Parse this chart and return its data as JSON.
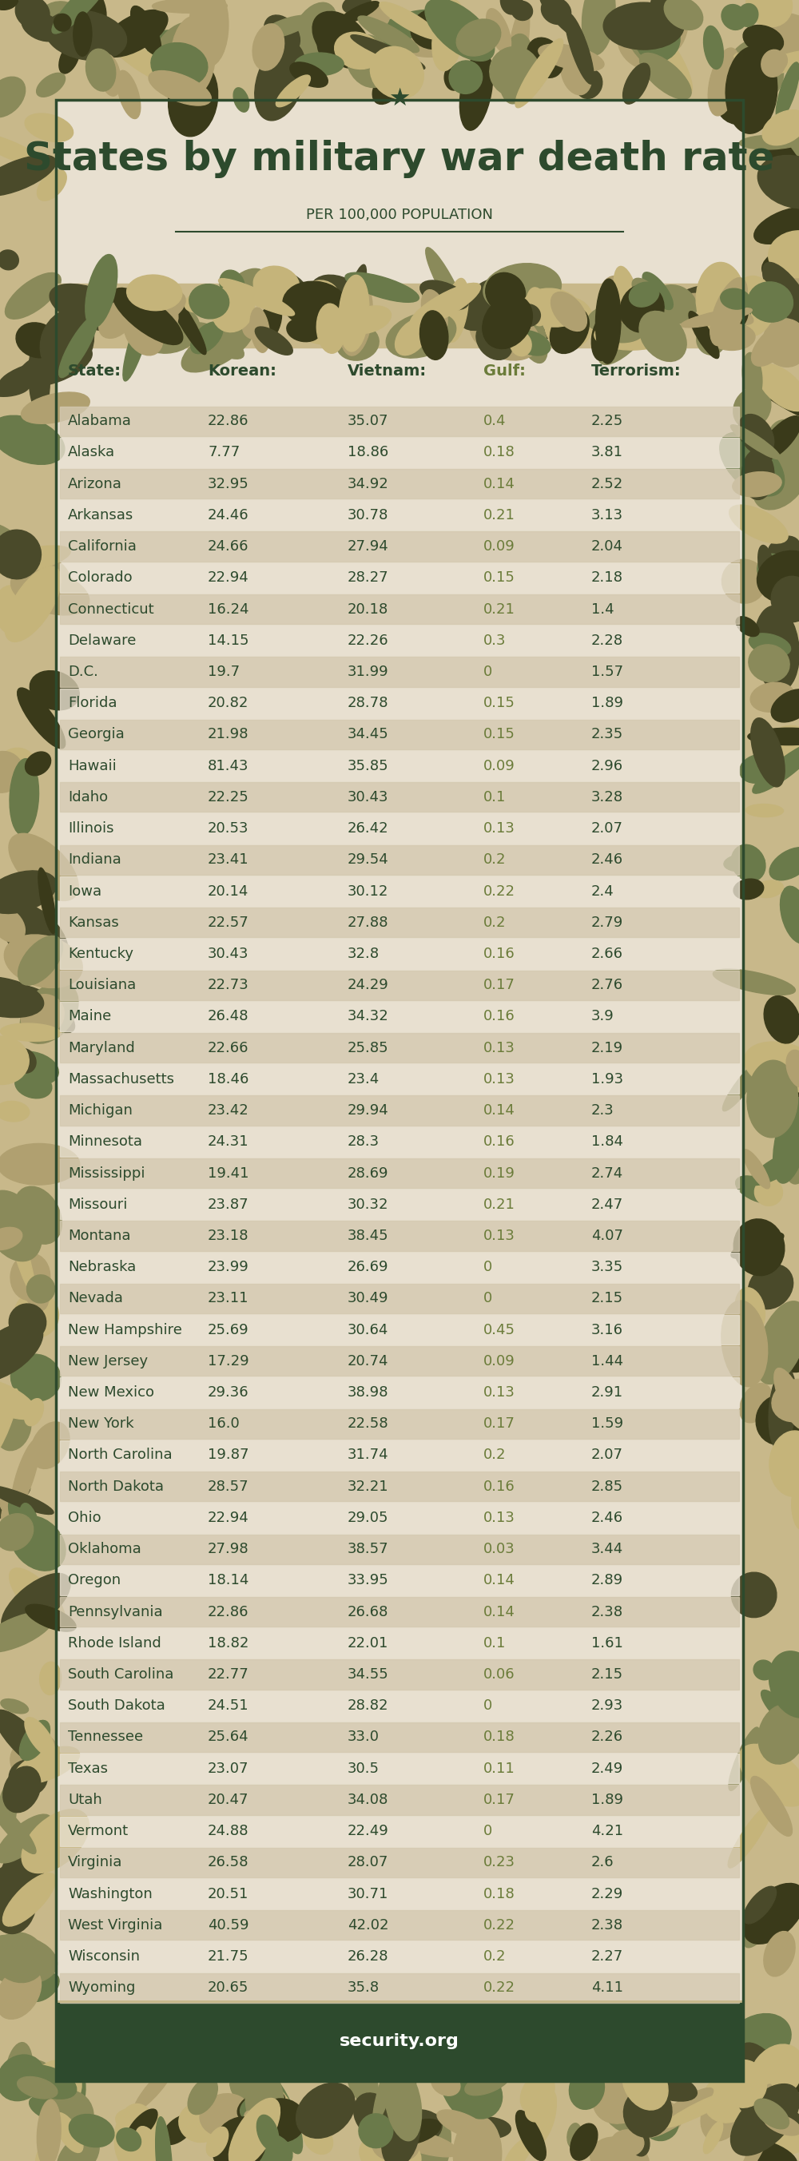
{
  "title": "States by military war death rate",
  "subtitle": "PER 100,000 POPULATION",
  "bg_color": "#e8e0d0",
  "camo_bg": "#d4c9b0",
  "dark_green": "#2d4a2d",
  "footer_bg": "#2d4a2d",
  "footer_text": "security.org",
  "columns": [
    "State:",
    "Korean:",
    "Vietnam:",
    "Gulf:",
    "Terrorism:"
  ],
  "col_colors": [
    "#2d4a2d",
    "#2d4a2d",
    "#2d4a2d",
    "#6b7c3a",
    "#2d4a2d"
  ],
  "row_bg_even": "#d4c9b0",
  "row_bg_odd": "#e8e0d0",
  "states": [
    "Alabama",
    "Alaska",
    "Arizona",
    "Arkansas",
    "California",
    "Colorado",
    "Connecticut",
    "Delaware",
    "D.C.",
    "Florida",
    "Georgia",
    "Hawaii",
    "Idaho",
    "Illinois",
    "Indiana",
    "Iowa",
    "Kansas",
    "Kentucky",
    "Louisiana",
    "Maine",
    "Maryland",
    "Massachusetts",
    "Michigan",
    "Minnesota",
    "Mississippi",
    "Missouri",
    "Montana",
    "Nebraska",
    "Nevada",
    "New Hampshire",
    "New Jersey",
    "New Mexico",
    "New York",
    "North Carolina",
    "North Dakota",
    "Ohio",
    "Oklahoma",
    "Oregon",
    "Pennsylvania",
    "Rhode Island",
    "South Carolina",
    "South Dakota",
    "Tennessee",
    "Texas",
    "Utah",
    "Vermont",
    "Virginia",
    "Washington",
    "West Virginia",
    "Wisconsin",
    "Wyoming"
  ],
  "korean": [
    22.86,
    7.77,
    32.95,
    24.46,
    24.66,
    22.94,
    16.24,
    14.15,
    19.7,
    20.82,
    21.98,
    81.43,
    22.25,
    20.53,
    23.41,
    20.14,
    22.57,
    30.43,
    22.73,
    26.48,
    22.66,
    18.46,
    23.42,
    24.31,
    19.41,
    23.87,
    23.18,
    23.99,
    23.11,
    25.69,
    17.29,
    29.36,
    16.0,
    19.87,
    28.57,
    22.94,
    27.98,
    18.14,
    22.86,
    18.82,
    22.77,
    24.51,
    25.64,
    23.07,
    20.47,
    24.88,
    26.58,
    20.51,
    40.59,
    21.75,
    20.65
  ],
  "vietnam": [
    35.07,
    18.86,
    34.92,
    30.78,
    27.94,
    28.27,
    20.18,
    22.26,
    31.99,
    28.78,
    34.45,
    35.85,
    30.43,
    26.42,
    29.54,
    30.12,
    27.88,
    32.8,
    24.29,
    34.32,
    25.85,
    23.4,
    29.94,
    28.3,
    28.69,
    30.32,
    38.45,
    26.69,
    30.49,
    30.64,
    20.74,
    38.98,
    22.58,
    31.74,
    32.21,
    29.05,
    38.57,
    33.95,
    26.68,
    22.01,
    34.55,
    28.82,
    33.0,
    30.5,
    34.08,
    22.49,
    28.07,
    30.71,
    42.02,
    26.28,
    35.8
  ],
  "gulf": [
    0.4,
    0.18,
    0.14,
    0.21,
    0.09,
    0.15,
    0.21,
    0.3,
    0.0,
    0.15,
    0.15,
    0.09,
    0.1,
    0.13,
    0.2,
    0.22,
    0.2,
    0.16,
    0.17,
    0.16,
    0.13,
    0.13,
    0.14,
    0.16,
    0.19,
    0.21,
    0.13,
    0.0,
    0.0,
    0.45,
    0.09,
    0.13,
    0.17,
    0.2,
    0.16,
    0.13,
    0.03,
    0.14,
    0.14,
    0.1,
    0.06,
    0.0,
    0.18,
    0.11,
    0.17,
    0.0,
    0.23,
    0.18,
    0.22,
    0.2,
    0.22
  ],
  "terrorism": [
    2.25,
    3.81,
    2.52,
    3.13,
    2.04,
    2.18,
    1.4,
    2.28,
    1.57,
    1.89,
    2.35,
    2.96,
    3.28,
    2.07,
    2.46,
    2.4,
    2.79,
    2.66,
    2.76,
    3.9,
    2.19,
    1.93,
    2.3,
    1.84,
    2.74,
    2.47,
    4.07,
    3.35,
    2.15,
    3.16,
    1.44,
    2.91,
    1.59,
    2.07,
    2.85,
    2.46,
    3.44,
    2.89,
    2.38,
    1.61,
    2.15,
    2.93,
    2.26,
    2.49,
    1.89,
    4.21,
    2.6,
    2.29,
    2.38,
    2.27,
    4.11
  ]
}
